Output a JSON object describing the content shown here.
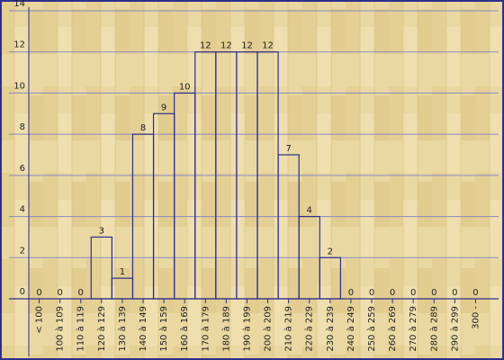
{
  "chart_data": {
    "type": "bar",
    "categories": [
      "< 100",
      "100 à 109",
      "110 à 119",
      "120 à 129",
      "130 à 139",
      "140 à 149",
      "150 à 159",
      "160 à 169",
      "170 à 179",
      "180 à 189",
      "190 à 199",
      "200 à 209",
      "210 à 219",
      "220 à 229",
      "230 à 239",
      "240 à 249",
      "250 à 259",
      "260 à 269",
      "270 à 279",
      "280 à 289",
      "290 à 299",
      "300 -"
    ],
    "values": [
      0,
      0,
      0,
      3,
      1,
      8,
      9,
      10,
      12,
      12,
      12,
      12,
      7,
      4,
      2,
      0,
      0,
      0,
      0,
      0,
      0,
      0
    ],
    "color": "#2e2e8a",
    "ylim": [
      0,
      14
    ],
    "yticks": [
      0,
      2,
      4,
      6,
      8,
      10,
      12,
      14
    ],
    "grid": true
  }
}
